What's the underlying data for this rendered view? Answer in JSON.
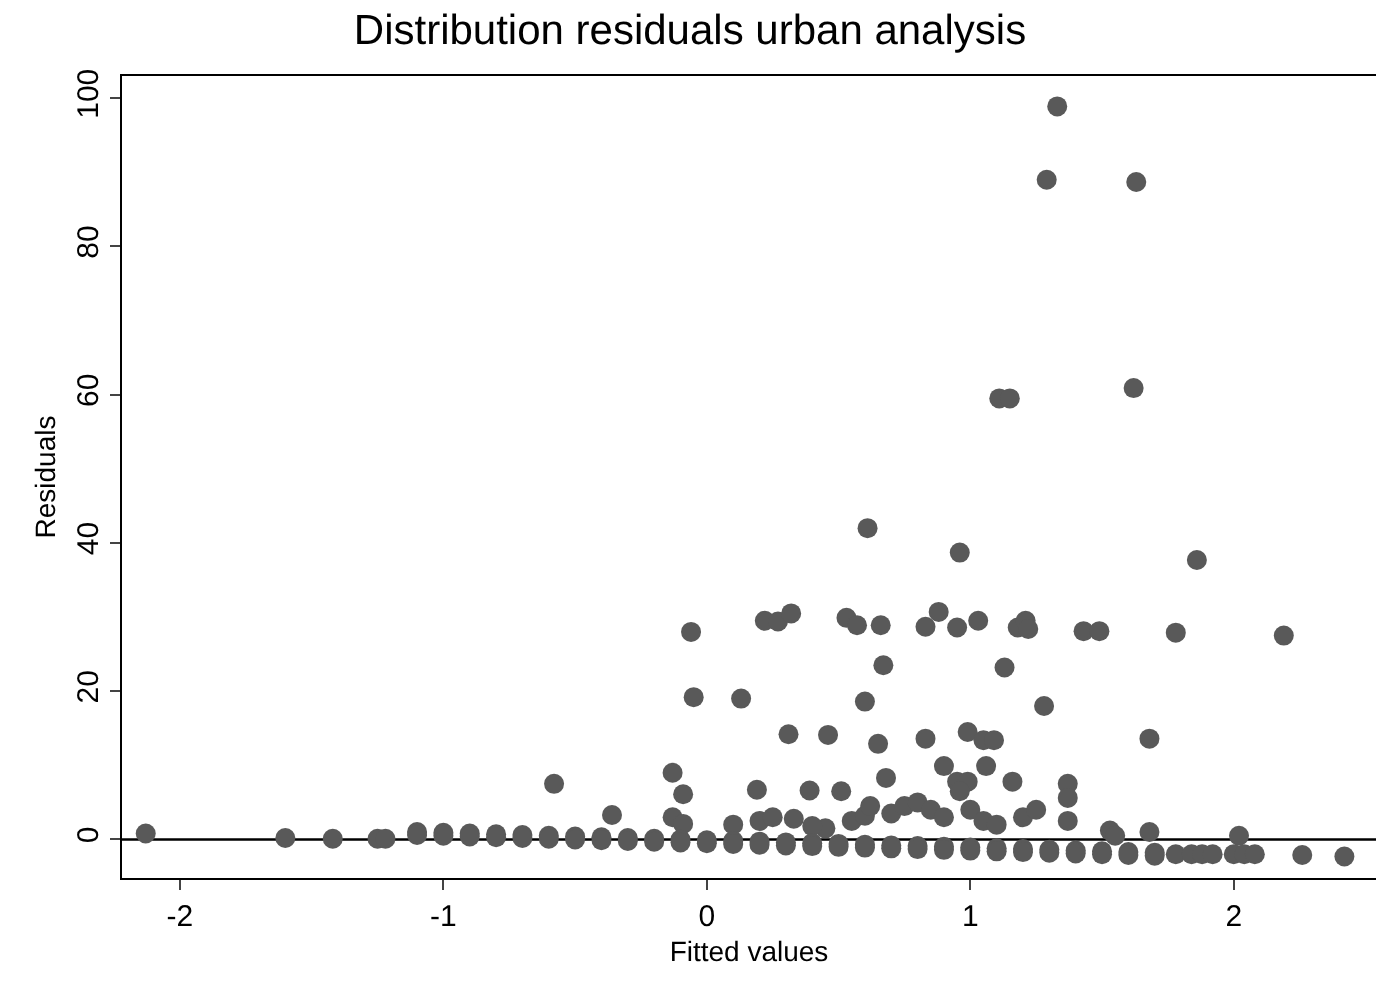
{
  "chart_data": {
    "type": "scatter",
    "title": "Distribution residuals urban analysis",
    "xlabel": "Fitted values",
    "ylabel": "Residuals",
    "series": [
      {
        "color": "#595959",
        "x": [
          1.33,
          1.29,
          1.63,
          1.11,
          1.15,
          1.62,
          0.61,
          0.96,
          1.86,
          -0.06,
          0.22,
          0.27,
          0.32,
          0.53,
          0.57,
          0.66,
          0.83,
          0.88,
          0.95,
          1.03,
          1.18,
          1.21,
          1.22,
          1.43,
          1.49,
          1.78,
          2.19,
          0.67,
          1.13,
          -0.05,
          0.13,
          0.6,
          1.28,
          0.31,
          0.46,
          0.65,
          0.83,
          0.99,
          1.05,
          1.09,
          1.68,
          -0.58,
          -0.13,
          -0.09,
          0.19,
          0.39,
          0.51,
          0.68,
          0.9,
          0.95,
          0.99,
          1.06,
          1.16,
          1.37,
          1.37,
          0.96,
          -0.36,
          -0.13,
          -0.09,
          1.37,
          2.02,
          1.53,
          1.68,
          -2.13,
          -1.6,
          -1.42,
          -1.25,
          -1.22,
          0.1,
          0.2,
          0.25,
          0.33,
          0.45,
          0.55,
          0.6,
          0.7,
          0.75,
          0.8,
          0.85,
          0.9,
          1.0,
          1.05,
          1.1,
          1.2,
          1.25,
          1.55,
          0.62,
          0.4,
          -1.1,
          -1.0,
          -0.9,
          -0.8,
          -0.7,
          -0.6,
          -0.5,
          -0.4,
          -0.3,
          -0.2,
          -0.1,
          0.0,
          0.1,
          0.2,
          0.3,
          0.4,
          0.5,
          0.6,
          0.7,
          0.8,
          0.9,
          1.0,
          1.1,
          1.2,
          1.3,
          1.4,
          1.5,
          1.6,
          1.7,
          -1.1,
          -1.0,
          -0.9,
          -0.8,
          -0.7,
          -0.6,
          -0.5,
          -0.4,
          -0.3,
          -0.2,
          -0.1,
          0.0,
          0.1,
          0.2,
          0.3,
          0.4,
          0.5,
          0.6,
          0.7,
          0.8,
          0.9,
          1.0,
          1.1,
          1.2,
          1.3,
          1.4,
          1.5,
          1.6,
          1.7,
          1.78,
          1.84,
          1.88,
          1.92,
          2.0,
          2.04,
          2.08,
          2.26,
          2.42
        ],
        "values": [
          98.9,
          89.0,
          88.7,
          59.5,
          59.5,
          60.9,
          42.0,
          38.7,
          37.7,
          28.0,
          29.5,
          29.4,
          30.5,
          29.9,
          28.9,
          28.9,
          28.7,
          30.7,
          28.6,
          29.5,
          28.6,
          29.5,
          28.4,
          28.1,
          28.1,
          27.9,
          27.5,
          23.5,
          23.2,
          19.2,
          19.0,
          18.6,
          18.0,
          14.2,
          14.1,
          12.9,
          13.6,
          14.5,
          13.4,
          13.4,
          13.6,
          7.5,
          9.0,
          6.1,
          6.7,
          6.6,
          6.5,
          8.3,
          9.9,
          7.8,
          7.8,
          9.9,
          7.8,
          7.5,
          5.6,
          6.5,
          3.3,
          3.0,
          2.1,
          2.5,
          0.5,
          1.2,
          1.0,
          0.8,
          0.2,
          0.1,
          0.1,
          0.1,
          2.0,
          2.5,
          3.0,
          2.8,
          1.5,
          2.5,
          3.2,
          3.5,
          4.5,
          5.0,
          4.0,
          3.0,
          4.0,
          2.5,
          2.0,
          3.0,
          4.0,
          0.5,
          4.5,
          1.8,
          1.0,
          0.9,
          0.8,
          0.7,
          0.6,
          0.5,
          0.4,
          0.3,
          0.2,
          0.1,
          0.0,
          -0.1,
          -0.2,
          -0.3,
          -0.4,
          -0.5,
          -0.6,
          -0.7,
          -0.8,
          -0.9,
          -1.0,
          -1.1,
          -1.2,
          -1.3,
          -1.4,
          -1.5,
          -1.6,
          -1.7,
          -1.8,
          0.6,
          0.5,
          0.4,
          0.3,
          0.2,
          0.1,
          0.0,
          -0.1,
          -0.2,
          -0.3,
          -0.4,
          -0.5,
          -0.6,
          -0.7,
          -0.8,
          -0.9,
          -1.0,
          -1.1,
          -1.2,
          -1.3,
          -1.4,
          -1.5,
          -1.6,
          -1.7,
          -1.8,
          -1.9,
          -2.0,
          -2.1,
          -2.2,
          -2.0,
          -2.0,
          -2.0,
          -2.0,
          -2.0,
          -2.0,
          -2.0,
          -2.1,
          -2.3
        ]
      }
    ],
    "marker": "circle",
    "grid": false,
    "xlim": [
      -2.22,
      2.54
    ],
    "xticks": [
      -2,
      -1,
      0,
      1,
      2
    ],
    "ylim": [
      -5.2,
      103
    ],
    "yticks": [
      0,
      20,
      40,
      60,
      80,
      100
    ],
    "ref_lines": [
      {
        "axis": "y",
        "value": 0,
        "color": "#000000"
      }
    ]
  }
}
